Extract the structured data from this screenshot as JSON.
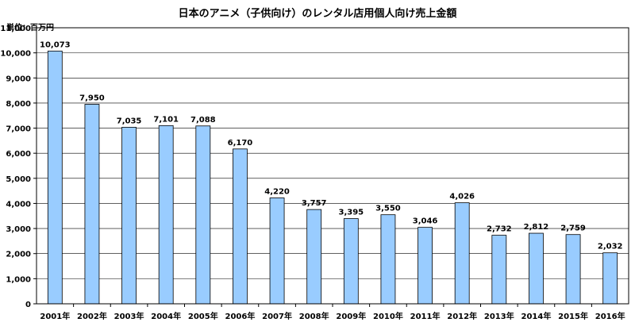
{
  "chart_data": {
    "type": "bar",
    "title": "日本のアニメ（子供向け）のレンタル店用個人向け売上金額",
    "unit_label": "単位：百万円",
    "categories": [
      "2001年",
      "2002年",
      "2003年",
      "2004年",
      "2005年",
      "2006年",
      "2007年",
      "2008年",
      "2009年",
      "2010年",
      "2011年",
      "2012年",
      "2013年",
      "2014年",
      "2015年",
      "2016年"
    ],
    "values": [
      10073,
      7950,
      7035,
      7101,
      7088,
      6170,
      4220,
      3757,
      3395,
      3550,
      3046,
      4026,
      2732,
      2812,
      2759,
      2032
    ],
    "value_labels": [
      "10,073",
      "7,950",
      "7,035",
      "7,101",
      "7,088",
      "6,170",
      "4,220",
      "3,757",
      "3,395",
      "3,550",
      "3,046",
      "4,026",
      "2,732",
      "2,812",
      "2,759",
      "2,032"
    ],
    "ylim": [
      0,
      11000
    ],
    "yticks": [
      0,
      1000,
      2000,
      3000,
      4000,
      5000,
      6000,
      7000,
      8000,
      9000,
      10000,
      11000
    ],
    "ytick_labels": [
      "0",
      "1,000",
      "2,000",
      "3,000",
      "4,000",
      "5,000",
      "6,000",
      "7,000",
      "8,000",
      "9,000",
      "10,000",
      "11,000"
    ],
    "grid": true,
    "legend": "none",
    "colors": {
      "bar_fill": "#99ccff",
      "bar_stroke": "#000000",
      "grid": "#000000",
      "background": "#ffffff"
    }
  }
}
